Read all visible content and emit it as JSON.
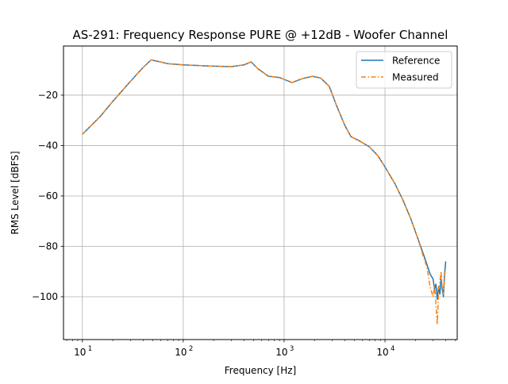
{
  "chart_data": {
    "type": "line",
    "title": "AS-291: Frequency Response PURE @ +12dB - Woofer Channel",
    "xlabel": "Frequency [Hz]",
    "ylabel": "RMS Level [dBFS]",
    "xscale": "log",
    "xlim": [
      6.5,
      52000
    ],
    "ylim": [
      -117,
      -0.5
    ],
    "grid": true,
    "legend_position": "top-right",
    "x_ticks": [
      {
        "value": 10,
        "base": "10",
        "exp": "1"
      },
      {
        "value": 100,
        "base": "10",
        "exp": "2"
      },
      {
        "value": 1000,
        "base": "10",
        "exp": "3"
      },
      {
        "value": 10000,
        "base": "10",
        "exp": "4"
      }
    ],
    "y_ticks": [
      {
        "value": -20,
        "label": "−20"
      },
      {
        "value": -40,
        "label": "−40"
      },
      {
        "value": -60,
        "label": "−60"
      },
      {
        "value": -80,
        "label": "−80"
      },
      {
        "value": -100,
        "label": "−100"
      }
    ],
    "series": [
      {
        "name": "Reference",
        "color": "#1f77b4",
        "style": "solid",
        "x": [
          10,
          15,
          20,
          30,
          40,
          48,
          55,
          70,
          100,
          150,
          200,
          300,
          400,
          470,
          550,
          700,
          900,
          1200,
          1500,
          1900,
          2300,
          2800,
          3300,
          4000,
          4600,
          5500,
          7000,
          8500,
          10000,
          12500,
          15000,
          18000,
          21000,
          24000,
          26000,
          28000,
          30000,
          31000,
          32000,
          33000,
          34000,
          35000,
          36000,
          37000,
          38000,
          39000,
          40000
        ],
        "y": [
          -35.5,
          -28.5,
          -22.5,
          -14.5,
          -9,
          -6,
          -6.5,
          -7.5,
          -8,
          -8.3,
          -8.5,
          -8.7,
          -8,
          -6.8,
          -9.5,
          -12.5,
          -13,
          -15,
          -13.5,
          -12.5,
          -13.2,
          -16.5,
          -24,
          -32,
          -36.5,
          -38,
          -40.5,
          -44,
          -48.5,
          -55,
          -61.5,
          -69,
          -76.5,
          -83,
          -87,
          -91,
          -93,
          -97,
          -95,
          -101,
          -96,
          -99,
          -93,
          -97,
          -100,
          -91,
          -86
        ]
      },
      {
        "name": "Measured",
        "color": "#ff7f0e",
        "style": "dashdot",
        "x": [
          10,
          15,
          20,
          30,
          40,
          48,
          55,
          70,
          100,
          150,
          200,
          300,
          400,
          470,
          550,
          700,
          900,
          1200,
          1500,
          1900,
          2300,
          2800,
          3300,
          4000,
          4600,
          5500,
          7000,
          8500,
          10000,
          12500,
          15000,
          18000,
          21000,
          24000,
          26000,
          28000,
          30000,
          31000,
          32000,
          33000,
          34000,
          35000,
          36000,
          37000,
          38000,
          39000,
          40000
        ],
        "y": [
          -35.5,
          -28.5,
          -22.5,
          -14.5,
          -9,
          -6,
          -6.5,
          -7.5,
          -8,
          -8.3,
          -8.5,
          -8.7,
          -8,
          -6.8,
          -9.5,
          -12.5,
          -13,
          -15,
          -13.5,
          -12.5,
          -13.2,
          -16.5,
          -24,
          -32,
          -36.5,
          -38,
          -40.5,
          -44,
          -48.5,
          -55,
          -61.5,
          -69,
          -76.5,
          -84,
          -88,
          -96,
          -100,
          -96,
          -103,
          -111,
          -97,
          -94,
          -90,
          -97,
          -99,
          -92,
          -88
        ]
      }
    ]
  }
}
